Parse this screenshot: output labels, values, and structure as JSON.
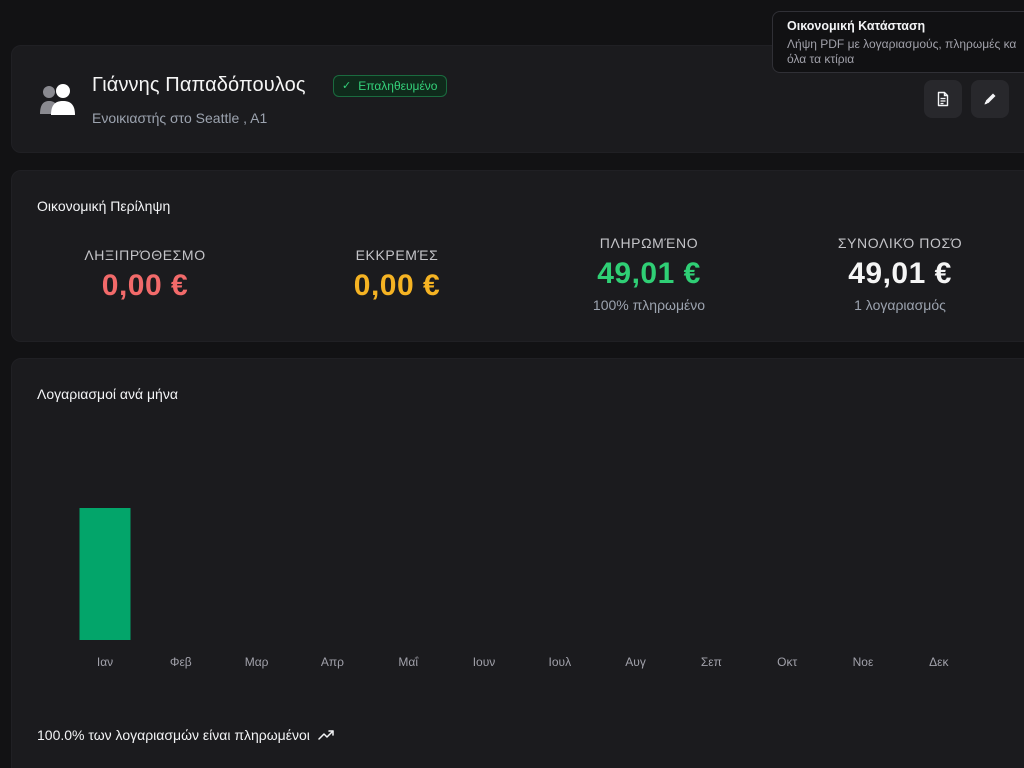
{
  "profile": {
    "name": "Γιάννης Παπαδόπουλος",
    "badge_label": "Επαληθευμένο",
    "subtitle": "Ενοικιαστής στο Seattle , A1",
    "avatar_icon": "users-icon",
    "pdf_button_icon": "document-icon",
    "edit_button_icon": "pencil-icon"
  },
  "tooltip": {
    "title": "Οικονομική Κατάσταση",
    "text": "Λήψη PDF με λογαριασμούς, πληρωμές κα όλα τα κτίρια"
  },
  "summary": {
    "title": "Οικονομική Περίληψη",
    "overdue": {
      "label": "ΛΗΞΙΠΡΌΘΕΣΜΟ",
      "value": "0,00 €",
      "color": "#f26a6a"
    },
    "pending": {
      "label": "ΕΚΚΡΕΜΈΣ",
      "value": "0,00 €",
      "color": "#f5b323"
    },
    "paid": {
      "label": "ΠΛΗΡΩΜΈΝΟ",
      "value": "49,01 €",
      "sub": "100% πληρωμένο",
      "color": "#2fcf75"
    },
    "total": {
      "label": "ΣΥΝΟΛΙΚΌ ΠΟΣΌ",
      "value": "49,01 €",
      "sub": "1 λογαριασμός",
      "color": "#f5f5f5"
    }
  },
  "chart": {
    "title": "Λογαριασμοί ανά μήνα",
    "footer": "100.0% των λογαριασμών είναι πληρωμένοι",
    "footer_icon": "trending-up-icon",
    "bar_color": "#03a56a"
  },
  "chart_data": {
    "type": "bar",
    "categories": [
      "Ιαν",
      "Φεβ",
      "Μαρ",
      "Απρ",
      "Μαΐ",
      "Ιουν",
      "Ιουλ",
      "Αυγ",
      "Σεπ",
      "Οκτ",
      "Νοε",
      "Δεκ"
    ],
    "values": [
      1,
      0,
      0,
      0,
      0,
      0,
      0,
      0,
      0,
      0,
      0,
      0
    ],
    "title": "Λογαριασμοί ανά μήνα",
    "xlabel": "",
    "ylabel": "",
    "ylim": [
      0,
      1
    ],
    "grid": false,
    "legend": "none"
  }
}
